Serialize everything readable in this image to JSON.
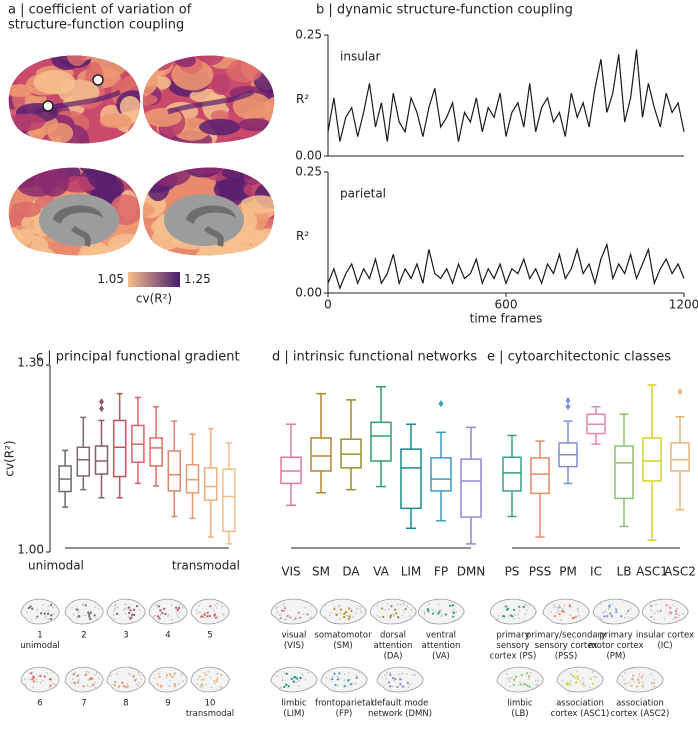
{
  "chart_data": [
    {
      "type": "image",
      "title": [
        "a | coefficient of variation of",
        "structure-function coupling"
      ],
      "colorbar": {
        "lim": [
          1.05,
          1.25
        ],
        "ticks": [
          1.05,
          1.25
        ],
        "label": "cv(R²)",
        "colors": [
          "#f6c08e",
          "#4a1a6e"
        ]
      }
    },
    {
      "type": "line",
      "title": "b | dynamic structure-function coupling",
      "annotation": "insular",
      "ylabel": "R²",
      "color": "#1a1a1a",
      "x": [
        0,
        20,
        40,
        60,
        80,
        100,
        120,
        140,
        160,
        180,
        200,
        220,
        240,
        260,
        280,
        300,
        320,
        340,
        360,
        380,
        400,
        420,
        440,
        460,
        480,
        500,
        520,
        540,
        560,
        580,
        600,
        620,
        640,
        660,
        680,
        700,
        720,
        740,
        760,
        780,
        800,
        820,
        840,
        860,
        880,
        900,
        920,
        940,
        960,
        980,
        1000,
        1020,
        1040,
        1060,
        1080,
        1100,
        1120,
        1140,
        1160,
        1180,
        1200
      ],
      "values": [
        0.05,
        0.12,
        0.03,
        0.08,
        0.1,
        0.04,
        0.09,
        0.15,
        0.06,
        0.11,
        0.03,
        0.13,
        0.07,
        0.05,
        0.12,
        0.09,
        0.04,
        0.1,
        0.14,
        0.06,
        0.08,
        0.11,
        0.03,
        0.09,
        0.07,
        0.12,
        0.05,
        0.1,
        0.08,
        0.13,
        0.04,
        0.09,
        0.11,
        0.06,
        0.15,
        0.05,
        0.1,
        0.12,
        0.07,
        0.09,
        0.04,
        0.13,
        0.08,
        0.11,
        0.06,
        0.14,
        0.2,
        0.09,
        0.13,
        0.21,
        0.07,
        0.12,
        0.22,
        0.08,
        0.15,
        0.1,
        0.06,
        0.13,
        0.09,
        0.11,
        0.05
      ],
      "xlim": [
        0,
        1200
      ],
      "ylim": [
        0,
        0.25
      ],
      "yticks": [
        {
          "value": 0,
          "label": "0.00"
        },
        0.25
      ]
    },
    {
      "type": "line",
      "annotation": "parietal",
      "ylabel": "R²",
      "xlabel": "time frames",
      "color": "#1a1a1a",
      "x": [
        0,
        20,
        40,
        60,
        80,
        100,
        120,
        140,
        160,
        180,
        200,
        220,
        240,
        260,
        280,
        300,
        320,
        340,
        360,
        380,
        400,
        420,
        440,
        460,
        480,
        500,
        520,
        540,
        560,
        580,
        600,
        620,
        640,
        660,
        680,
        700,
        720,
        740,
        760,
        780,
        800,
        820,
        840,
        860,
        880,
        900,
        920,
        940,
        960,
        980,
        1000,
        1020,
        1040,
        1060,
        1080,
        1100,
        1120,
        1140,
        1160,
        1180,
        1200
      ],
      "values": [
        0.02,
        0.05,
        0.01,
        0.04,
        0.06,
        0.02,
        0.05,
        0.03,
        0.07,
        0.02,
        0.04,
        0.08,
        0.02,
        0.05,
        0.03,
        0.06,
        0.02,
        0.09,
        0.04,
        0.03,
        0.05,
        0.02,
        0.06,
        0.03,
        0.04,
        0.07,
        0.02,
        0.05,
        0.03,
        0.06,
        0.02,
        0.05,
        0.04,
        0.07,
        0.03,
        0.05,
        0.02,
        0.06,
        0.04,
        0.08,
        0.03,
        0.05,
        0.09,
        0.04,
        0.06,
        0.02,
        0.07,
        0.1,
        0.03,
        0.06,
        0.04,
        0.08,
        0.03,
        0.06,
        0.09,
        0.02,
        0.05,
        0.07,
        0.04,
        0.06,
        0.03
      ],
      "xlim": [
        0,
        1200
      ],
      "xticks": [
        0,
        600,
        1200
      ],
      "ylim": [
        0,
        0.25
      ],
      "yticks": [
        {
          "value": 0,
          "label": "0.00"
        },
        0.25
      ]
    },
    {
      "type": "box",
      "title": "c | principal functional gradient",
      "ylabel": "cv(R²)",
      "annotations": [
        "unimodal",
        "transmodal"
      ],
      "ylim": [
        1.0,
        1.3
      ],
      "yticks": [
        {
          "value": 1.0,
          "label": "1.00"
        },
        {
          "value": 1.3,
          "label": "1.30"
        }
      ],
      "categories": [
        null,
        null,
        null,
        null,
        null,
        null,
        null,
        null,
        null,
        null
      ],
      "colors": [
        "#6b6b6b",
        "#7a6a6e",
        "#8a5a66",
        "#c0545e",
        "#d0646a",
        "#de6f6a",
        "#e48466",
        "#e99a6e",
        "#efb07c",
        "#f2be8a"
      ],
      "min": [
        1.072,
        1.1,
        1.087,
        1.087,
        1.11,
        1.106,
        1.057,
        1.054,
        1.024,
        1.013
      ],
      "q1": [
        1.097,
        1.122,
        1.125,
        1.121,
        1.144,
        1.138,
        1.098,
        1.095,
        1.083,
        1.033
      ],
      "median": [
        1.117,
        1.148,
        1.146,
        1.168,
        1.173,
        1.167,
        1.124,
        1.116,
        1.105,
        1.089
      ],
      "q3": [
        1.138,
        1.168,
        1.17,
        1.211,
        1.203,
        1.183,
        1.162,
        1.14,
        1.135,
        1.133
      ],
      "max": [
        1.163,
        1.216,
        1.211,
        1.254,
        1.248,
        1.233,
        1.21,
        1.189,
        1.198,
        1.175
      ],
      "outliers": [
        [],
        [],
        [
          1.241,
          1.23
        ],
        [],
        [],
        [],
        [],
        [],
        [],
        []
      ],
      "thumbnails": [
        [
          "1",
          "unimodal"
        ],
        [
          "2"
        ],
        [
          "3"
        ],
        [
          "4"
        ],
        [
          "5"
        ],
        [
          "6"
        ],
        [
          "7"
        ],
        [
          "8"
        ],
        [
          "9"
        ],
        [
          "10",
          "transmodal"
        ]
      ]
    },
    {
      "type": "box",
      "title": "d | intrinsic functional networks",
      "ylim": [
        1.0,
        1.3
      ],
      "categories": [
        "VIS",
        "SM",
        "DA",
        "VA",
        "LIM",
        "FP",
        "DMN"
      ],
      "colors": [
        "#e07aa0",
        "#b8862b",
        "#9a8e2d",
        "#2ea06a",
        "#1a8a8a",
        "#3e9bc4",
        "#9a83d6"
      ],
      "min": [
        1.075,
        1.095,
        1.1,
        1.105,
        1.038,
        1.05,
        1.013
      ],
      "q1": [
        1.11,
        1.13,
        1.135,
        1.146,
        1.07,
        1.098,
        1.056
      ],
      "median": [
        1.13,
        1.154,
        1.157,
        1.186,
        1.135,
        1.117,
        1.114
      ],
      "q3": [
        1.152,
        1.183,
        1.181,
        1.208,
        1.165,
        1.151,
        1.149
      ],
      "max": [
        1.205,
        1.254,
        1.244,
        1.265,
        1.205,
        1.192,
        1.2
      ],
      "outliers": [
        [],
        [],
        [],
        [],
        [],
        [
          1.238
        ],
        []
      ],
      "thumbnails": [
        [
          "visual",
          "(VIS)"
        ],
        [
          "somatomotor",
          "(SM)"
        ],
        [
          "dorsal",
          "attention",
          "(DA)"
        ],
        [
          "ventral",
          "attention",
          "(VA)"
        ],
        [
          "limbic",
          "(LIM)"
        ],
        [
          "frontoparietal",
          "(FP)"
        ],
        [
          "default mode",
          "network (DMN)"
        ]
      ]
    },
    {
      "type": "box",
      "title": "e | cytoarchitectonic classes",
      "ylim": [
        1.0,
        1.3
      ],
      "categories": [
        "PS",
        "PSS",
        "PM",
        "IC",
        "LB",
        "ASC1",
        "ASC2"
      ],
      "colors": [
        "#3aa08a",
        "#e8896b",
        "#7d8fd6",
        "#e887b0",
        "#8ec26a",
        "#d4d42a",
        "#e8b47a"
      ],
      "min": [
        1.057,
        1.024,
        1.11,
        1.173,
        1.041,
        1.019,
        1.068
      ],
      "q1": [
        1.098,
        1.094,
        1.137,
        1.19,
        1.086,
        1.114,
        1.13
      ],
      "median": [
        1.127,
        1.125,
        1.156,
        1.205,
        1.143,
        1.146,
        1.148
      ],
      "q3": [
        1.152,
        1.151,
        1.175,
        1.221,
        1.17,
        1.183,
        1.175
      ],
      "max": [
        1.187,
        1.178,
        1.21,
        1.233,
        1.221,
        1.268,
        1.217
      ],
      "outliers": [
        [],
        [],
        [
          1.243,
          1.233
        ],
        [],
        [],
        [],
        [
          1.257
        ]
      ],
      "thumbnails": [
        [
          "primary",
          "sensory",
          "cortex (PS)"
        ],
        [
          "primary/secondary",
          "sensory cortex",
          "(PSS)"
        ],
        [
          "primary",
          "motor cortex",
          "(PM)"
        ],
        [
          "insular cortex",
          "(IC)"
        ],
        [
          "limbic",
          "(LB)"
        ],
        [
          "association",
          "cortex (ASC1)"
        ],
        [
          "association",
          "cortex (ASC2)"
        ]
      ]
    }
  ]
}
